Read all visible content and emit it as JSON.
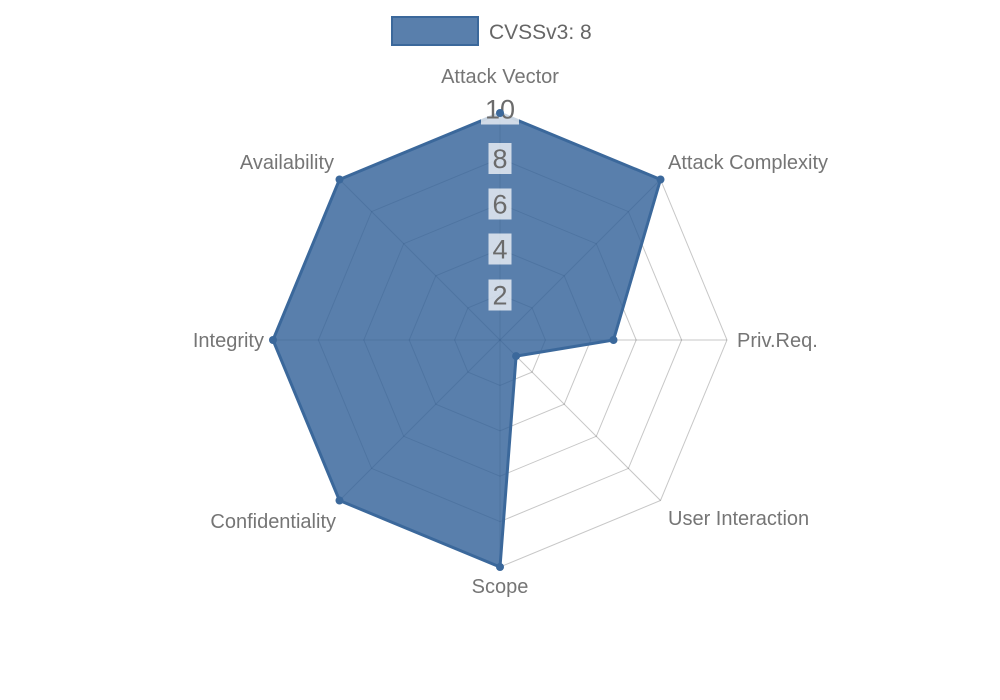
{
  "legend": {
    "label": "CVSSv3: 8"
  },
  "chart_data": {
    "type": "radar",
    "title": "",
    "legend_position": "top",
    "grid": "polygon-web",
    "categories": [
      "Attack Vector",
      "Attack Complexity",
      "Priv.Req.",
      "User Interaction",
      "Scope",
      "Confidentiality",
      "Integrity",
      "Availability"
    ],
    "series": [
      {
        "name": "CVSSv3: 8",
        "values": [
          10,
          10,
          5,
          1,
          10,
          10,
          10,
          10
        ]
      }
    ],
    "scale": {
      "min": 0,
      "max": 10,
      "tick_step": 2,
      "ticks": [
        2,
        4,
        6,
        8,
        10
      ]
    },
    "colors": {
      "series_fill": "rgba(47,95,151,0.8)",
      "series_line": "#3b689b",
      "marker": "#3b689b",
      "grid_line": "rgba(0,0,0,0.22)",
      "axis_label": "#757575",
      "tick_label": "#6b6b6b",
      "tick_backdrop": "rgba(255,255,255,0.72)",
      "legend_text": "#666666"
    }
  }
}
